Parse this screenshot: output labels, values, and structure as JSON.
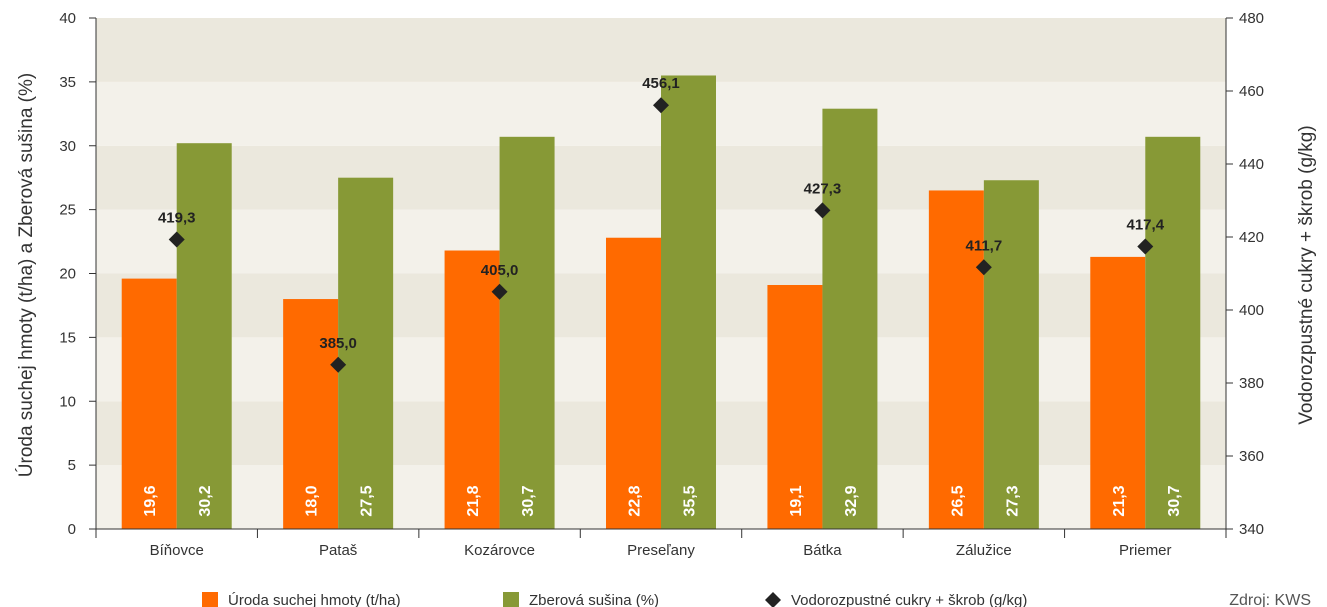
{
  "chart_data": {
    "type": "bar",
    "categories": [
      "Bíňovce",
      "Pataš",
      "Kozárovce",
      "Preseľany",
      "Bátka",
      "Zálužice",
      "Priemer"
    ],
    "series": [
      {
        "name": "Úroda suchej hmoty (t/ha)",
        "type": "bar",
        "axis": "left",
        "color": "#ff6a00",
        "values": [
          19.6,
          18.0,
          21.8,
          22.8,
          19.1,
          26.5,
          21.3
        ],
        "labels": [
          "19,6",
          "18,0",
          "21,8",
          "22,8",
          "19,1",
          "26,5",
          "21,3"
        ]
      },
      {
        "name": "Zberová sušina (%)",
        "type": "bar",
        "axis": "left",
        "color": "#879936",
        "values": [
          30.2,
          27.5,
          30.7,
          35.5,
          32.9,
          27.3,
          30.7
        ],
        "labels": [
          "30,2",
          "27,5",
          "30,7",
          "35,5",
          "32,9",
          "27,3",
          "30,7"
        ]
      },
      {
        "name": "Vodorozpustné cukry + škrob (g/kg)",
        "type": "scatter",
        "axis": "right",
        "color": "#222222",
        "values": [
          419.3,
          385.0,
          405.0,
          456.1,
          427.3,
          411.7,
          417.4
        ],
        "labels": [
          "419,3",
          "385,0",
          "405,0",
          "456,1",
          "427,3",
          "411,7",
          "417,4"
        ]
      }
    ],
    "ylabel": "Úroda suchej hmoty (t/ha) a Zberová sušina (%)",
    "y2label": "Vodorozpustné cukry + škrob (g/kg)",
    "ylim": [
      0,
      40
    ],
    "y2lim": [
      340,
      480
    ],
    "yticks": [
      "0",
      "5",
      "10",
      "15",
      "20",
      "25",
      "30",
      "35",
      "40"
    ],
    "y2ticks": [
      "340",
      "360",
      "380",
      "400",
      "420",
      "440",
      "460",
      "480"
    ],
    "legend_position": "bottom",
    "grid": "banded",
    "band_colors": [
      "#f3f1ea",
      "#ebe8dd"
    ]
  },
  "source": "Zdroj: KWS"
}
